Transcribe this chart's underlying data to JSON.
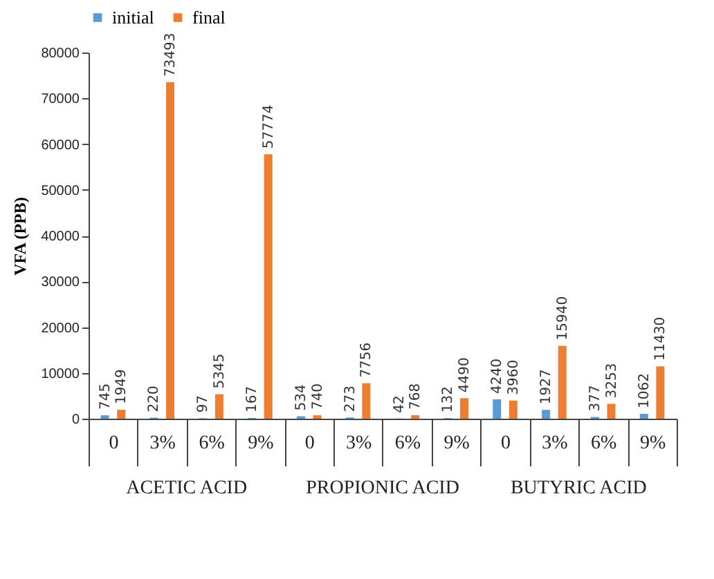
{
  "chart_data": {
    "type": "bar",
    "ylabel": "VFA (PPB)",
    "categories": [
      "0",
      "3%",
      "6%",
      "9%",
      "0",
      "3%",
      "6%",
      "9%",
      "0",
      "3%",
      "6%",
      "9%"
    ],
    "series": [
      {
        "name": "initial",
        "color": "#5b9bd5",
        "values": [
          745,
          220,
          97,
          167,
          534,
          273,
          42,
          132,
          4240,
          1927,
          377,
          1062
        ]
      },
      {
        "name": "final",
        "color": "#ed7d31",
        "values": [
          1949,
          73493,
          5345,
          57774,
          740,
          7756,
          768,
          4490,
          3960,
          15940,
          3253,
          11430
        ]
      }
    ],
    "annotations": [
      "ACETIC ACID",
      "PROPIONIC ACID",
      "BUTYRIC ACID"
    ],
    "ylim": [
      0,
      80000
    ],
    "yticks": [
      0,
      10000,
      20000,
      30000,
      40000,
      50000,
      60000,
      70000,
      80000
    ],
    "grid": false,
    "legend": "top",
    "data_labels": true
  }
}
